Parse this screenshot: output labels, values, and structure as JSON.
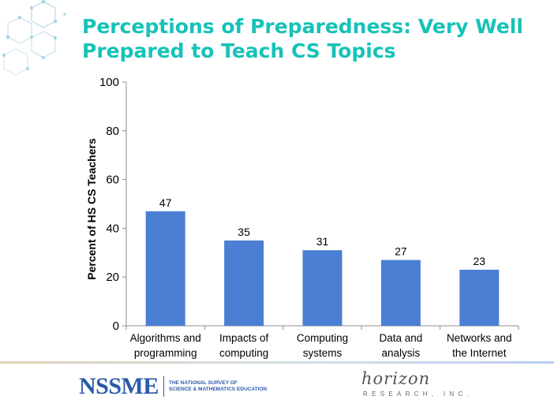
{
  "slide": {
    "title": "Perceptions of Preparedness: Very Well Prepared to Teach CS Topics",
    "accent_color": "#16c2b8",
    "decoration": "hexagon-network-icon"
  },
  "chart_data": {
    "type": "bar",
    "title": "",
    "xlabel": "",
    "ylabel": "Percent of HS CS Teachers",
    "ylim": [
      0,
      100
    ],
    "yticks": [
      0,
      20,
      40,
      60,
      80,
      100
    ],
    "grid": false,
    "legend": "none",
    "bar_color": "#4a7fd4",
    "categories": [
      [
        "Algorithms and",
        "programming"
      ],
      [
        "Impacts of",
        "computing"
      ],
      [
        "Computing",
        "systems"
      ],
      [
        "Data and",
        "analysis"
      ],
      [
        "Networks and",
        "the Internet"
      ]
    ],
    "values": [
      47,
      35,
      31,
      27,
      23
    ]
  },
  "footer": {
    "nssme_logo": "NSSME",
    "nssme_tagline_line1": "THE NATIONAL SURVEY OF",
    "nssme_tagline_line2": "SCIENCE & MATHEMATICS EDUCATION",
    "horizon_logo": "horizon",
    "horizon_tagline": "RESEARCH, INC.",
    "brand_color": "#2a5ba8"
  }
}
